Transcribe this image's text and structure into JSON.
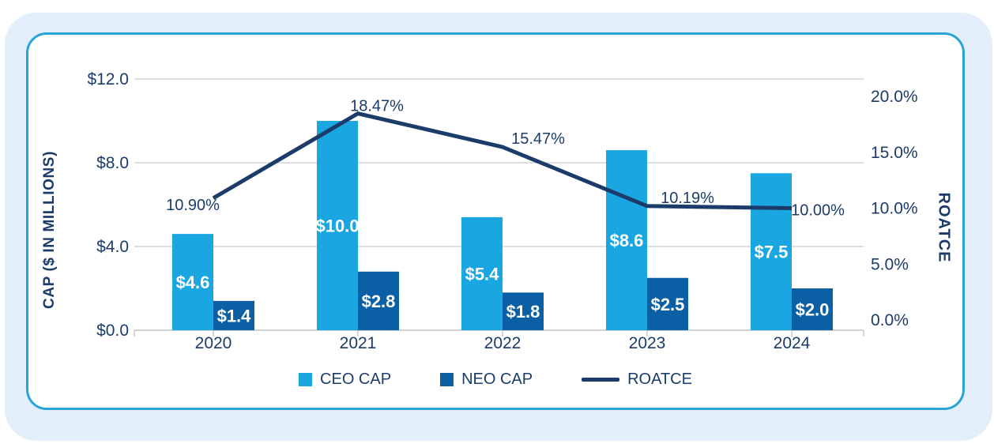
{
  "colors": {
    "navy": "#1B3C6B",
    "ceo_cap_blue": "#1AA6E1",
    "neo_cap_blue": "#0B5FA5",
    "panel_background": "#E2EEF9",
    "card_border": "#2AA4D7",
    "gridline_gray": "#C6CACD",
    "bar_label_white": "#FFFFFF"
  },
  "chart_data": {
    "type": "bar+line combo",
    "categories": [
      "2020",
      "2021",
      "2022",
      "2023",
      "2024"
    ],
    "series": [
      {
        "name": "CEO CAP",
        "type": "bar",
        "color": "#1AA6E1",
        "values": [
          4.6,
          10.0,
          5.4,
          8.6,
          7.5
        ],
        "labels": [
          "$4.6",
          "$10.0",
          "$5.4",
          "$8.6",
          "$7.5"
        ]
      },
      {
        "name": "NEO CAP",
        "type": "bar",
        "color": "#0B5FA5",
        "values": [
          1.4,
          2.8,
          1.8,
          2.5,
          2.0
        ],
        "labels": [
          "$1.4",
          "$2.8",
          "$1.8",
          "$2.5",
          "$2.0"
        ]
      },
      {
        "name": "ROATCE",
        "type": "line",
        "color": "#1B3C6B",
        "values": [
          10.9,
          18.47,
          15.47,
          10.19,
          10.0
        ],
        "labels": [
          "10.90%",
          "18.47%",
          "15.47%",
          "10.19%",
          "10.00%"
        ]
      }
    ],
    "left_axis": {
      "title": "CAP ($ IN MILLIONS)",
      "ticks": [
        "$0.0",
        "$4.0",
        "$8.0",
        "$12.0"
      ],
      "tick_values": [
        0,
        4,
        8,
        12
      ],
      "range": [
        0,
        12
      ]
    },
    "right_axis": {
      "title": "ROATCE",
      "ticks": [
        "0.0%",
        "5.0%",
        "10.0%",
        "15.0%",
        "20.0%"
      ],
      "tick_values": [
        0,
        5,
        10,
        15,
        20
      ],
      "range": [
        0,
        20
      ]
    },
    "grid": true,
    "legend_position": "bottom"
  }
}
